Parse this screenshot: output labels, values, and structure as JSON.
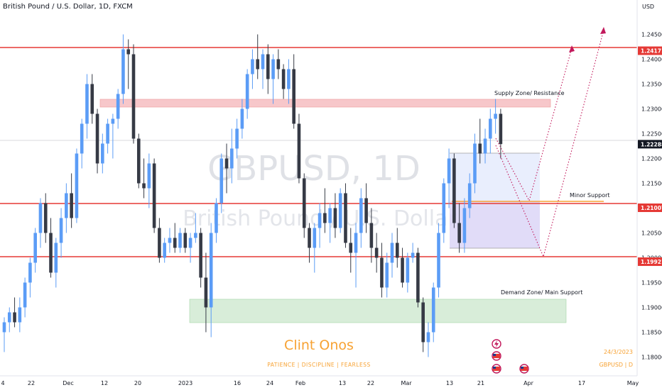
{
  "header": {
    "symbol_full": "British Pound / U.S. Dollar, 1D, FXCM"
  },
  "watermark": {
    "ticker": "GBPUSD, 1D",
    "name": "British Pound / U.S. Dollar"
  },
  "currency_label": "USD",
  "branding": {
    "name": "Clint Onos",
    "tagline": "PATIENCE  |  DISCIPLINE  |  FEARLESS",
    "date": "24/3/2023",
    "pair": "GBPUSD | D"
  },
  "annotations": {
    "supply": "Supply Zone/ Resistance",
    "minor": "Minor Support",
    "demand": "Demand Zone/ Main Support"
  },
  "colors": {
    "up": "#2962ff",
    "up_light": "#5b9cf6",
    "down": "#363a45",
    "level_line": "#e53935",
    "supply_zone": "#f4b4b8",
    "demand_zone": "#c8e6c9",
    "projection_box": "#dcd6f7",
    "minor_line": "#f7a233",
    "arrow": "#c2185b",
    "current_price_bg": "#131722"
  },
  "chart_data": {
    "type": "candlestick",
    "symbol": "GBPUSD",
    "timeframe": "1D",
    "ylim": [
      1.1765,
      1.2505
    ],
    "y_ticks": [
      "1.24500",
      "1.24000",
      "1.23500",
      "1.23000",
      "1.22500",
      "1.22000",
      "1.21500",
      "1.21000",
      "1.20500",
      "1.20000",
      "1.19500",
      "1.19000",
      "1.18500",
      "1.18000"
    ],
    "x_ticks": [
      "4",
      "22",
      "Dec",
      "12",
      "20",
      "2023",
      "16",
      "24",
      "Feb",
      "13",
      "22",
      "Mar",
      "13",
      "21",
      "Apr",
      "17",
      "May"
    ],
    "levels": [
      {
        "label": "1.24171",
        "value": 1.24171
      },
      {
        "label": "1.21007",
        "value": 1.21007
      },
      {
        "label": "1.19921",
        "value": 1.19921
      }
    ],
    "current_price": {
      "label": "1.22288",
      "value": 1.22288
    },
    "zones": [
      {
        "name": "supply",
        "from": 1.2298,
        "to": 1.2312
      },
      {
        "name": "demand",
        "from": 1.1858,
        "to": 1.1905
      }
    ],
    "candles": [
      [
        1.185,
        1.188,
        1.181,
        1.187
      ],
      [
        1.187,
        1.19,
        1.185,
        1.189
      ],
      [
        1.189,
        1.192,
        1.186,
        1.187
      ],
      [
        1.187,
        1.192,
        1.185,
        1.19
      ],
      [
        1.19,
        1.196,
        1.188,
        1.195
      ],
      [
        1.195,
        1.2,
        1.192,
        1.199
      ],
      [
        1.199,
        1.206,
        1.197,
        1.205
      ],
      [
        1.205,
        1.212,
        1.202,
        1.211
      ],
      [
        1.211,
        1.213,
        1.203,
        1.205
      ],
      [
        1.205,
        1.208,
        1.196,
        1.197
      ],
      [
        1.197,
        1.204,
        1.194,
        1.203
      ],
      [
        1.203,
        1.21,
        1.2,
        1.208
      ],
      [
        1.208,
        1.215,
        1.205,
        1.213
      ],
      [
        1.213,
        1.217,
        1.206,
        1.208
      ],
      [
        1.208,
        1.222,
        1.207,
        1.221
      ],
      [
        1.221,
        1.228,
        1.218,
        1.227
      ],
      [
        1.227,
        1.237,
        1.224,
        1.235
      ],
      [
        1.235,
        1.237,
        1.227,
        1.229
      ],
      [
        1.229,
        1.23,
        1.217,
        1.219
      ],
      [
        1.219,
        1.225,
        1.217,
        1.223
      ],
      [
        1.223,
        1.228,
        1.221,
        1.227
      ],
      [
        1.227,
        1.229,
        1.22,
        1.228
      ],
      [
        1.228,
        1.234,
        1.226,
        1.233
      ],
      [
        1.233,
        1.245,
        1.231,
        1.242
      ],
      [
        1.242,
        1.244,
        1.234,
        1.241
      ],
      [
        1.241,
        1.243,
        1.223,
        1.224
      ],
      [
        1.224,
        1.225,
        1.214,
        1.215
      ],
      [
        1.215,
        1.22,
        1.212,
        1.214
      ],
      [
        1.214,
        1.221,
        1.21,
        1.219
      ],
      [
        1.219,
        1.22,
        1.205,
        1.206
      ],
      [
        1.206,
        1.208,
        1.199,
        1.2
      ],
      [
        1.2,
        1.204,
        1.199,
        1.203
      ],
      [
        1.203,
        1.206,
        1.201,
        1.204
      ],
      [
        1.204,
        1.207,
        1.201,
        1.202
      ],
      [
        1.202,
        1.206,
        1.201,
        1.205
      ],
      [
        1.205,
        1.206,
        1.201,
        1.202
      ],
      [
        1.202,
        1.205,
        1.199,
        1.204
      ],
      [
        1.204,
        1.209,
        1.203,
        1.205
      ],
      [
        1.205,
        1.206,
        1.194,
        1.196
      ],
      [
        1.196,
        1.201,
        1.185,
        1.19
      ],
      [
        1.19,
        1.207,
        1.184,
        1.205
      ],
      [
        1.205,
        1.212,
        1.203,
        1.211
      ],
      [
        1.211,
        1.221,
        1.209,
        1.22
      ],
      [
        1.22,
        1.223,
        1.213,
        1.218
      ],
      [
        1.218,
        1.226,
        1.215,
        1.222
      ],
      [
        1.222,
        1.228,
        1.22,
        1.226
      ],
      [
        1.226,
        1.232,
        1.224,
        1.23
      ],
      [
        1.23,
        1.238,
        1.228,
        1.237
      ],
      [
        1.237,
        1.242,
        1.234,
        1.24
      ],
      [
        1.24,
        1.245,
        1.236,
        1.238
      ],
      [
        1.238,
        1.242,
        1.234,
        1.241
      ],
      [
        1.241,
        1.243,
        1.233,
        1.236
      ],
      [
        1.236,
        1.241,
        1.231,
        1.24
      ],
      [
        1.24,
        1.242,
        1.236,
        1.238
      ],
      [
        1.238,
        1.239,
        1.232,
        1.234
      ],
      [
        1.234,
        1.24,
        1.231,
        1.238
      ],
      [
        1.238,
        1.241,
        1.226,
        1.227
      ],
      [
        1.227,
        1.229,
        1.215,
        1.216
      ],
      [
        1.216,
        1.217,
        1.204,
        1.206
      ],
      [
        1.206,
        1.207,
        1.199,
        1.202
      ],
      [
        1.202,
        1.207,
        1.197,
        1.206
      ],
      [
        1.206,
        1.211,
        1.202,
        1.209
      ],
      [
        1.209,
        1.214,
        1.205,
        1.207
      ],
      [
        1.207,
        1.211,
        1.203,
        1.21
      ],
      [
        1.21,
        1.213,
        1.204,
        1.206
      ],
      [
        1.206,
        1.214,
        1.205,
        1.213
      ],
      [
        1.213,
        1.215,
        1.202,
        1.203
      ],
      [
        1.203,
        1.206,
        1.197,
        1.201
      ],
      [
        1.201,
        1.207,
        1.194,
        1.205
      ],
      [
        1.205,
        1.214,
        1.202,
        1.212
      ],
      [
        1.212,
        1.215,
        1.205,
        1.207
      ],
      [
        1.207,
        1.21,
        1.199,
        1.202
      ],
      [
        1.202,
        1.205,
        1.197,
        1.2
      ],
      [
        1.2,
        1.203,
        1.192,
        1.194
      ],
      [
        1.194,
        1.201,
        1.192,
        1.199
      ],
      [
        1.199,
        1.205,
        1.196,
        1.203
      ],
      [
        1.203,
        1.206,
        1.198,
        1.2
      ],
      [
        1.2,
        1.202,
        1.194,
        1.195
      ],
      [
        1.195,
        1.201,
        1.193,
        1.2
      ],
      [
        1.2,
        1.203,
        1.199,
        1.201
      ],
      [
        1.201,
        1.202,
        1.19,
        1.191
      ],
      [
        1.191,
        1.192,
        1.181,
        1.183
      ],
      [
        1.183,
        1.187,
        1.18,
        1.185
      ],
      [
        1.185,
        1.195,
        1.183,
        1.194
      ],
      [
        1.194,
        1.207,
        1.192,
        1.205
      ],
      [
        1.205,
        1.216,
        1.203,
        1.215
      ],
      [
        1.215,
        1.222,
        1.21,
        1.22
      ],
      [
        1.22,
        1.221,
        1.206,
        1.207
      ],
      [
        1.207,
        1.211,
        1.201,
        1.203
      ],
      [
        1.203,
        1.212,
        1.201,
        1.21
      ],
      [
        1.21,
        1.217,
        1.208,
        1.215
      ],
      [
        1.215,
        1.225,
        1.213,
        1.223
      ],
      [
        1.223,
        1.228,
        1.219,
        1.221
      ],
      [
        1.221,
        1.226,
        1.219,
        1.224
      ],
      [
        1.224,
        1.23,
        1.221,
        1.228
      ],
      [
        1.228,
        1.232,
        1.225,
        1.229
      ],
      [
        1.229,
        1.23,
        1.22,
        1.2229
      ]
    ]
  }
}
